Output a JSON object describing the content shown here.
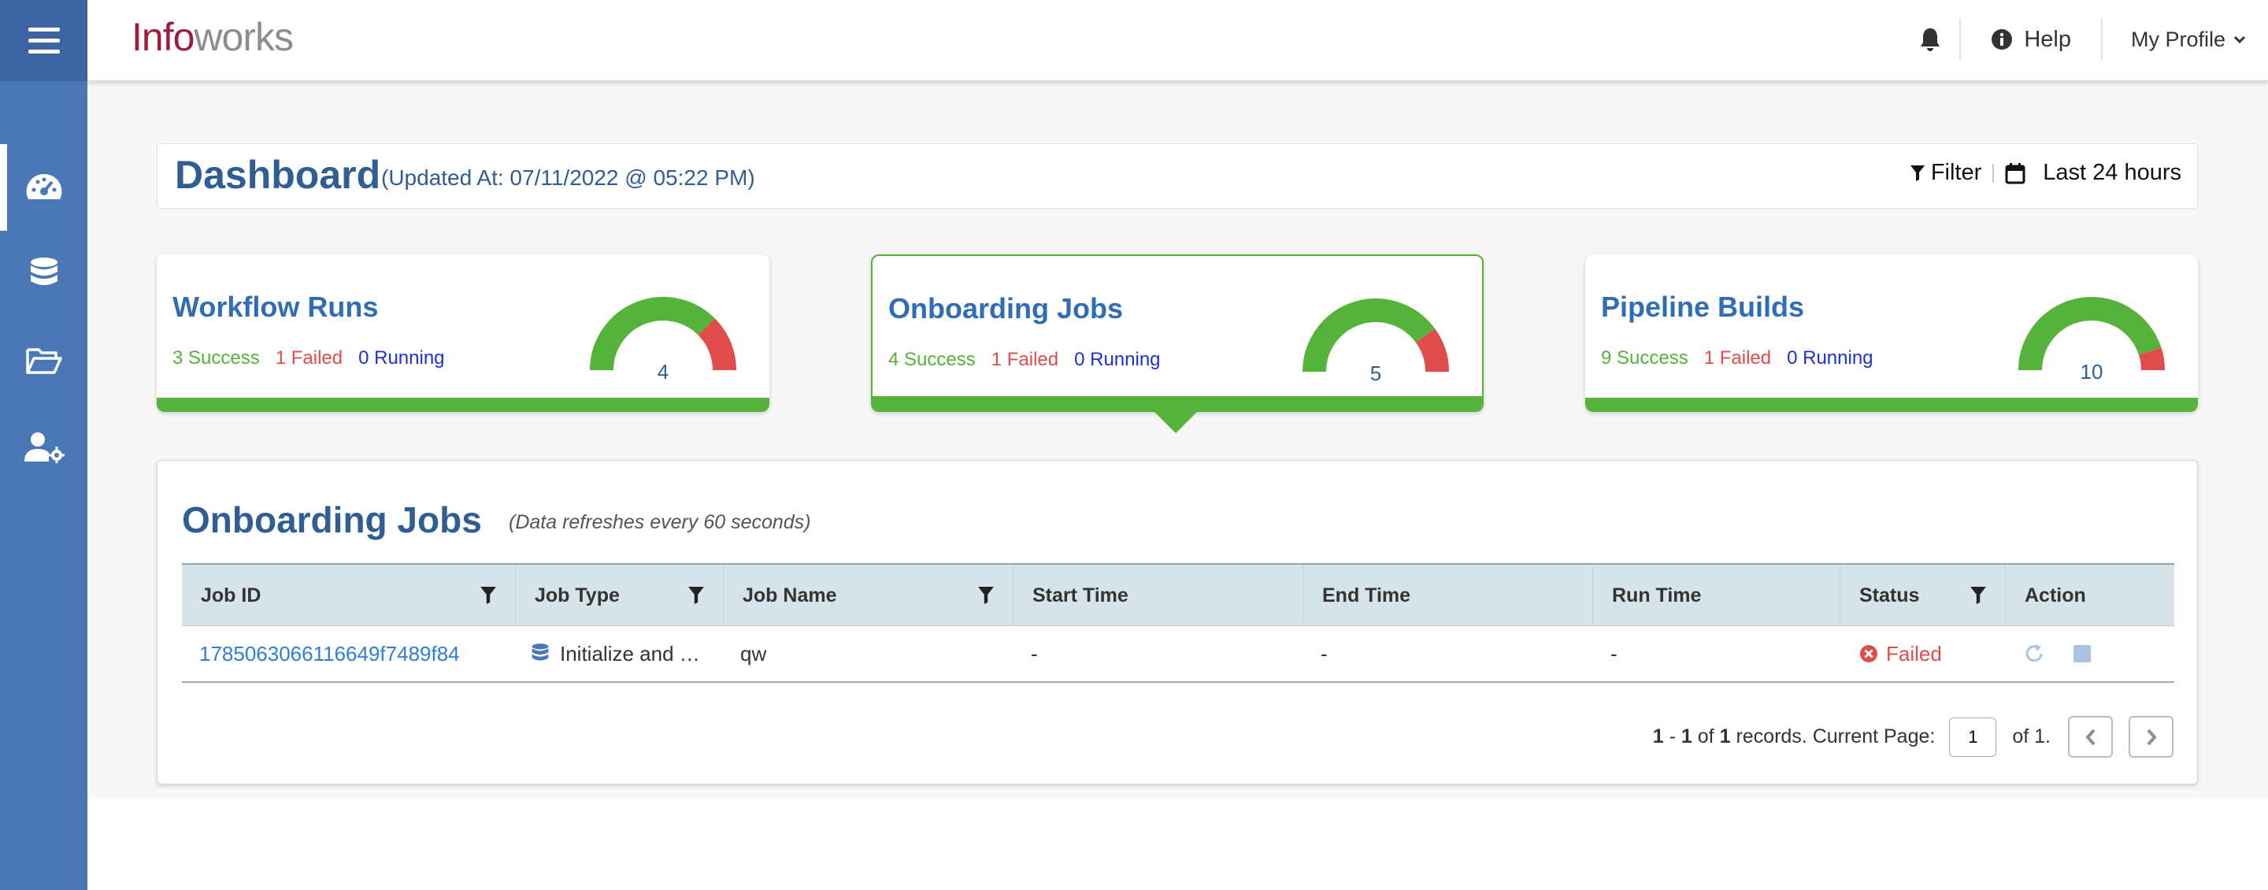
{
  "sidebar": {
    "menu_icon": "hamburger-menu-icon",
    "items": [
      {
        "icon": "dashboard-gauge-icon",
        "active": true
      },
      {
        "icon": "database-icon",
        "active": false
      },
      {
        "icon": "folder-open-icon",
        "active": false
      },
      {
        "icon": "user-settings-icon",
        "active": false
      }
    ]
  },
  "header": {
    "logo_part1": "Info",
    "logo_part2": "works",
    "help_label": "Help",
    "profile_label": "My Profile"
  },
  "dashboard": {
    "title": "Dashboard",
    "updated": "(Updated At: 07/11/2022 @ 05:22 PM)",
    "filter_label": "Filter",
    "range_label": "Last 24 hours"
  },
  "cards": [
    {
      "title": "Workflow Runs",
      "success": "3 Success",
      "failed": "1 Failed",
      "running": "0 Running",
      "total": "4",
      "failed_fraction": 0.25,
      "selected": false
    },
    {
      "title": "Onboarding Jobs",
      "success": "4 Success",
      "failed": "1 Failed",
      "running": "0 Running",
      "total": "5",
      "failed_fraction": 0.2,
      "selected": true
    },
    {
      "title": "Pipeline Builds",
      "success": "9 Success",
      "failed": "1 Failed",
      "running": "0 Running",
      "total": "10",
      "failed_fraction": 0.1,
      "selected": false
    }
  ],
  "jobs": {
    "title": "Onboarding Jobs",
    "note": "Data refreshes every 60 seconds",
    "columns": [
      "Job ID",
      "Job Type",
      "Job Name",
      "Start Time",
      "End Time",
      "Run Time",
      "Status",
      "Action"
    ],
    "rows": [
      {
        "job_id": "1785063066116649f7489f84",
        "job_type": "Initialize and …",
        "job_name": "qw",
        "start_time": "-",
        "end_time": "-",
        "run_time": "-",
        "status": "Failed"
      }
    ],
    "pager": {
      "range_start": "1",
      "range_end": "1",
      "of_word": "of",
      "total": "1",
      "records_text": "records. Current Page:",
      "current_page": "1",
      "of_pages": "of 1."
    }
  },
  "colors": {
    "sidebar": "#4a78b6",
    "sidebar_top": "#3c66a1",
    "success": "#55b23a",
    "failed": "#e04c4c",
    "running": "#1e2fd8",
    "title_blue": "#2f5d94",
    "link_blue": "#2f7fd6"
  }
}
